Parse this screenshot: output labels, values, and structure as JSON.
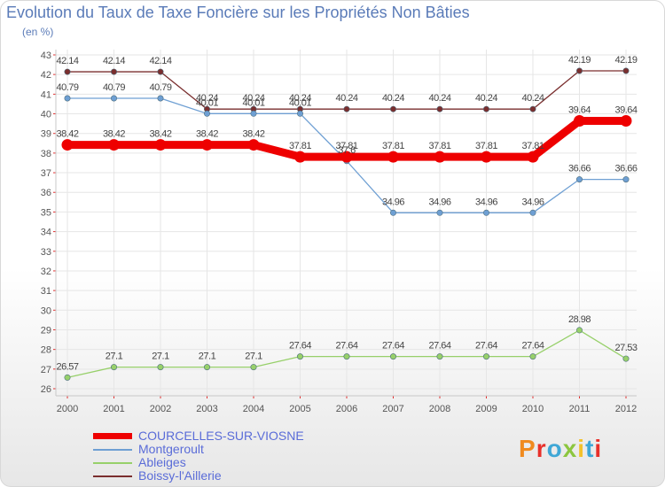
{
  "title": "Evolution du Taux de Taxe Foncière sur les Propriétés Non Bâties",
  "unit_label": "(en %)",
  "brand": "Proxiti",
  "chart_data": {
    "type": "line",
    "title": "Evolution du Taux de Taxe Foncière sur les Propriétés Non Bâties",
    "ylabel": "(en %)",
    "xlabel": "",
    "ylim": [
      26,
      43
    ],
    "yticks": [
      26,
      27,
      28,
      29,
      30,
      31,
      32,
      33,
      34,
      35,
      36,
      37,
      38,
      39,
      40,
      41,
      42,
      43
    ],
    "x": [
      "2000",
      "2001",
      "2002",
      "2003",
      "2004",
      "2005",
      "2006",
      "2007",
      "2008",
      "2009",
      "2010",
      "2011",
      "2012"
    ],
    "series": [
      {
        "name": "COURCELLES-SUR-VIOSNE",
        "color": "#ee0000",
        "labels": [
          "38.42",
          "38.42",
          "38.42",
          "38.42",
          "38.42",
          "37.81",
          "37.81",
          "37.81",
          "37.81",
          "37.81",
          "37.81",
          "39.64",
          "39.64"
        ],
        "values": [
          38.42,
          38.42,
          38.42,
          38.42,
          38.42,
          37.81,
          37.81,
          37.81,
          37.81,
          37.81,
          37.81,
          39.64,
          39.64
        ]
      },
      {
        "name": "Montgeroult",
        "color": "#6e9fd3",
        "labels": [
          "40.79",
          "40.79",
          "40.79",
          "40.01",
          "40.01",
          "40.01",
          "37.6",
          "34.96",
          "34.96",
          "34.96",
          "34.96",
          "36.66",
          "36.66"
        ],
        "values": [
          40.79,
          40.79,
          40.79,
          40.01,
          40.01,
          40.01,
          37.6,
          34.96,
          34.96,
          34.96,
          34.96,
          36.66,
          36.66
        ]
      },
      {
        "name": "Ableiges",
        "color": "#97d06a",
        "labels": [
          "26.57",
          "27.1",
          "27.1",
          "27.1",
          "27.1",
          "27.64",
          "27.64",
          "27.64",
          "27.64",
          "27.64",
          "27.64",
          "28.98",
          "27.53"
        ],
        "values": [
          26.57,
          27.1,
          27.1,
          27.1,
          27.1,
          27.64,
          27.64,
          27.64,
          27.64,
          27.64,
          27.64,
          28.98,
          27.53
        ]
      },
      {
        "name": "Boissy-l'Aillerie",
        "color": "#7a2e2e",
        "labels": [
          "42.14",
          "42.14",
          "42.14",
          "40.24",
          "40.24",
          "40.24",
          "40.24",
          "40.24",
          "40.24",
          "40.24",
          "40.24",
          "42.19",
          "42.19"
        ],
        "values": [
          42.14,
          42.14,
          42.14,
          40.24,
          40.24,
          40.24,
          40.24,
          40.24,
          40.24,
          40.24,
          40.24,
          42.19,
          42.19
        ]
      }
    ],
    "legend": "bottom-left"
  }
}
